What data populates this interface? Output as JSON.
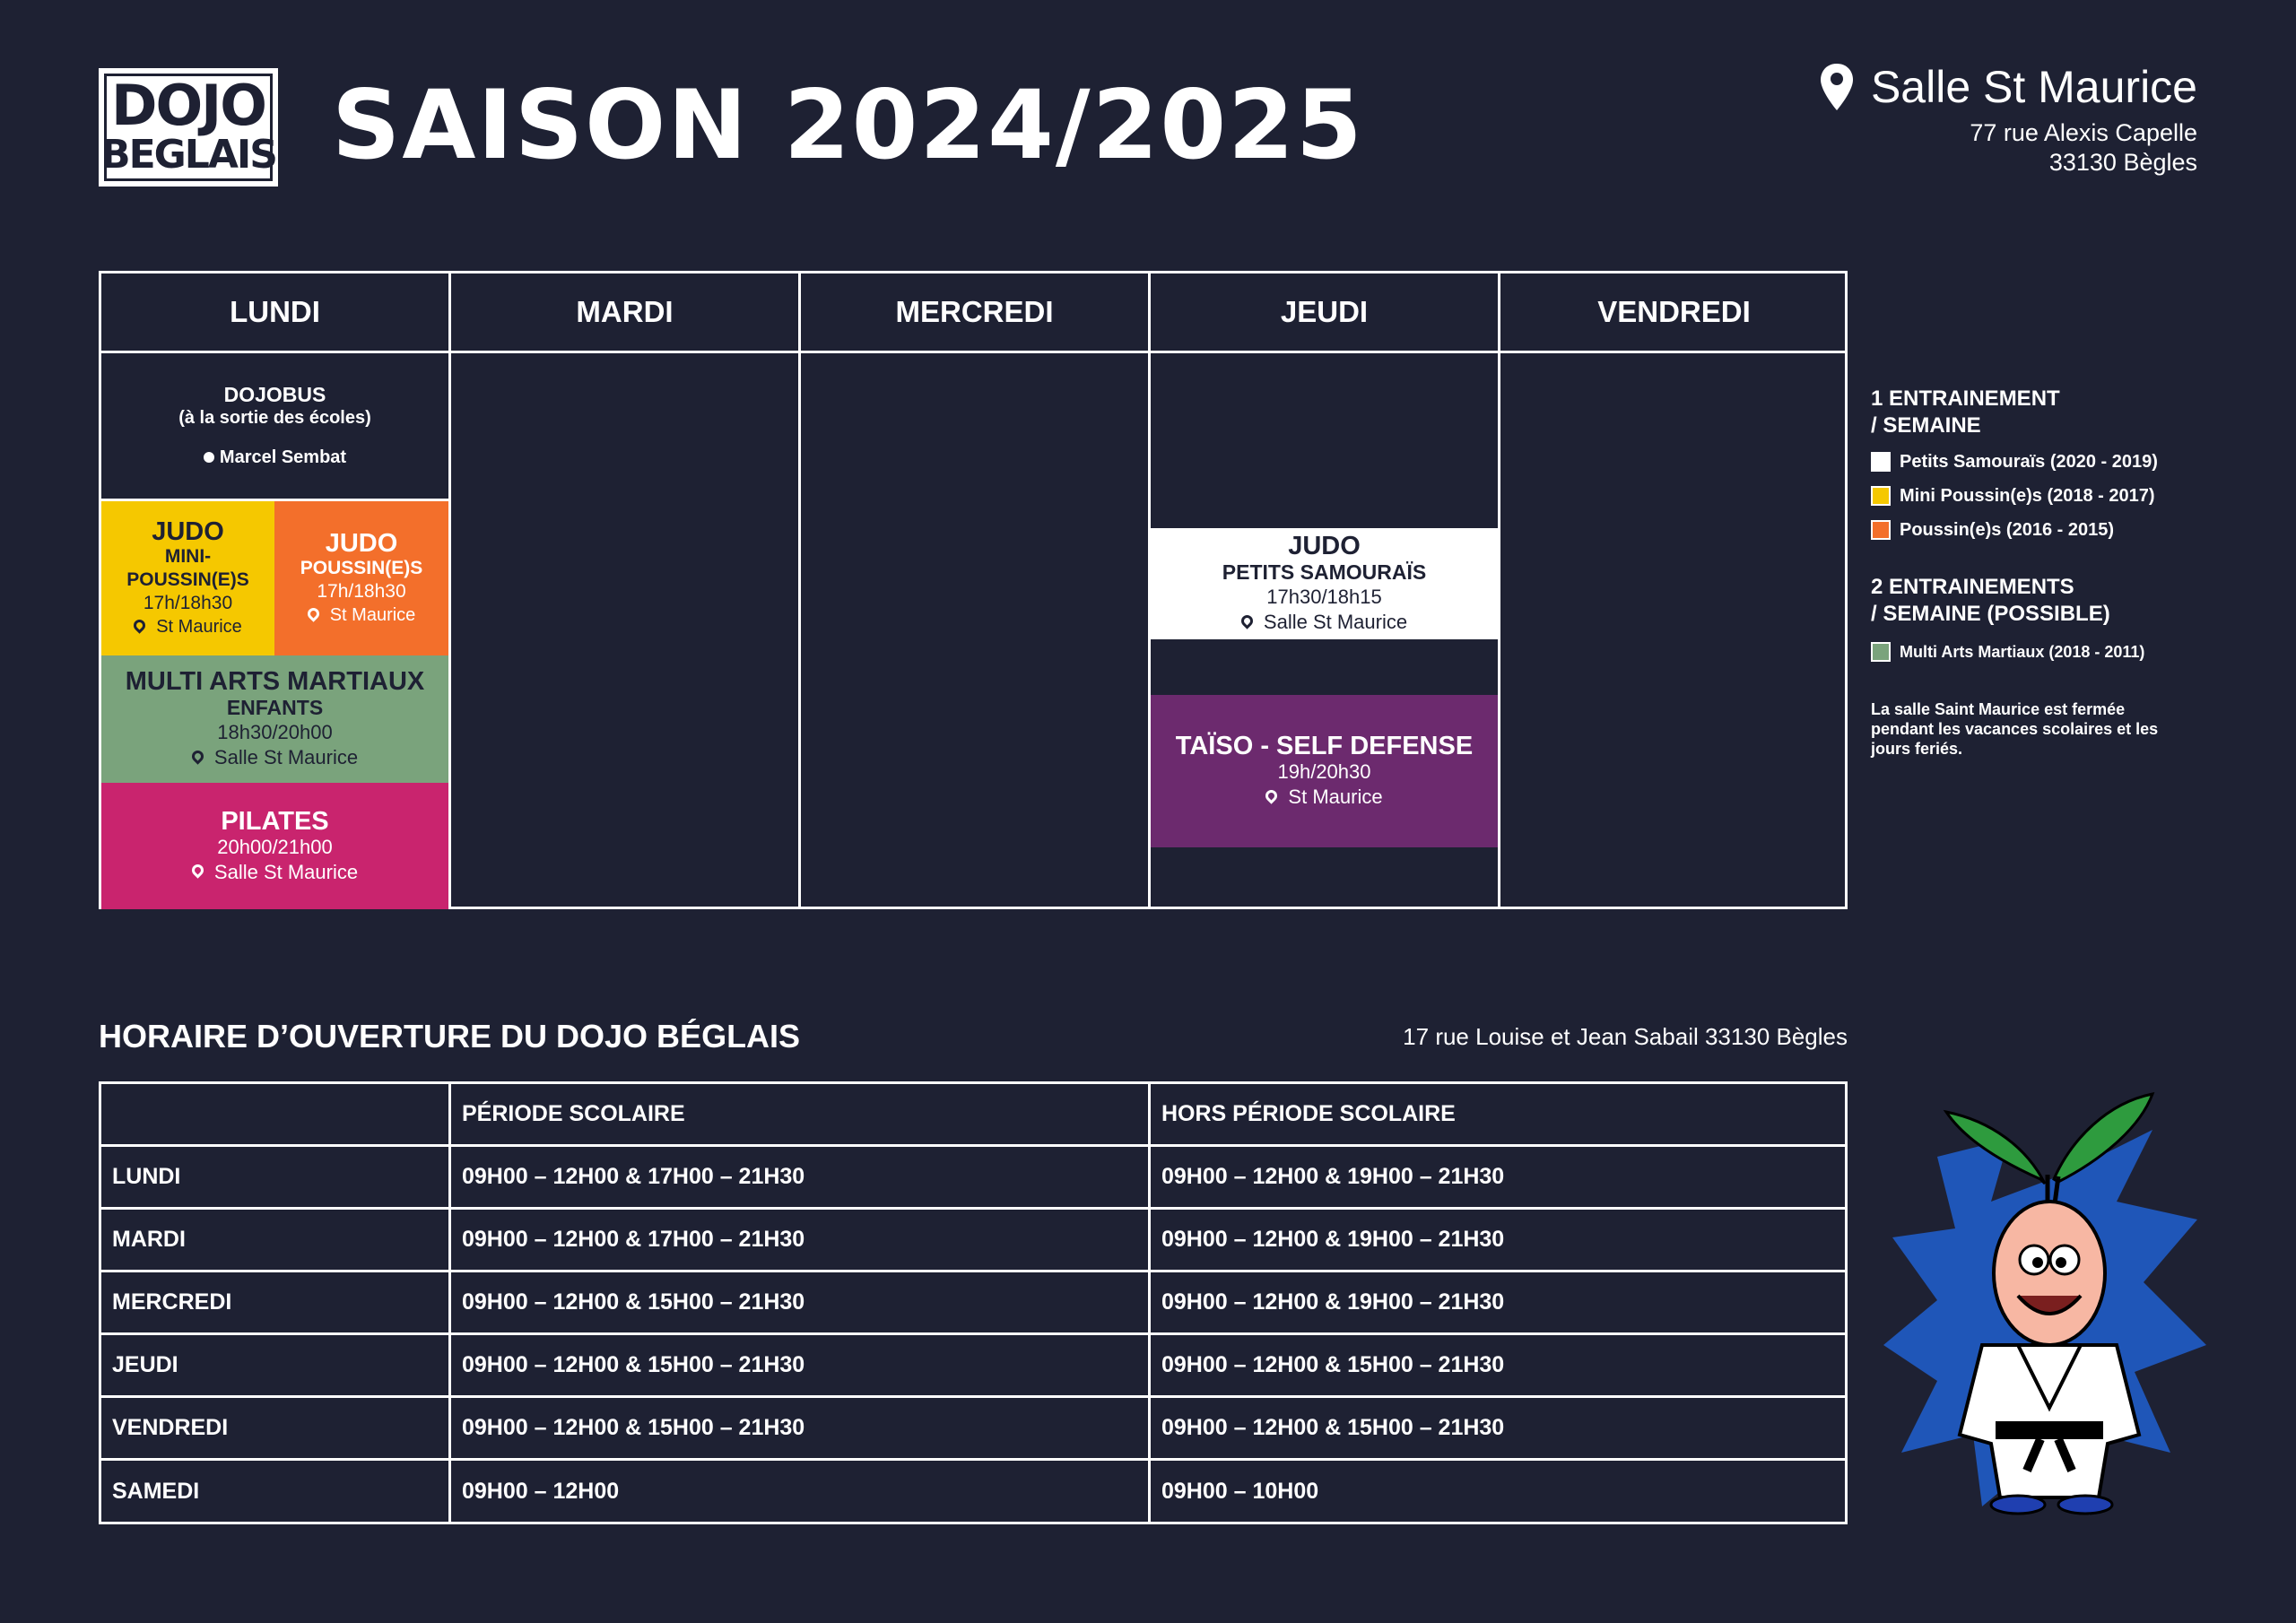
{
  "header": {
    "logo_line1": "DOJO",
    "logo_line2": "BEGLAIS",
    "title": "SAISON 2024/2025",
    "venue_name": "Salle St Maurice",
    "venue_address_1": "77 rue Alexis Capelle",
    "venue_address_2": "33130 Bègles"
  },
  "schedule": {
    "days": [
      "LUNDI",
      "MARDI",
      "MERCREDI",
      "JEUDI",
      "VENDREDI"
    ],
    "dojobus": {
      "title": "DOJOBUS",
      "subtitle": "(à la sortie des écoles)",
      "stop": "Marcel Sembat"
    },
    "judo_mini": {
      "title": "JUDO",
      "sub1": "MINI-",
      "sub2": "POUSSIN(E)S",
      "hours": "17h/18h30",
      "location": "St Maurice",
      "color": "#f5c800"
    },
    "judo_poussin": {
      "title": "JUDO",
      "sub": "POUSSIN(E)S",
      "hours": "17h/18h30",
      "location": "St Maurice",
      "color": "#f36f2b"
    },
    "multi_arts": {
      "title": "MULTI ARTS MARTIAUX",
      "sub": "ENFANTS",
      "hours": "18h30/20h00",
      "location": "Salle St Maurice",
      "color": "#7aa37c"
    },
    "pilates": {
      "title": "PILATES",
      "hours": "20h00/21h00",
      "location": "Salle St Maurice",
      "color": "#c9246e"
    },
    "judo_petits": {
      "title": "JUDO",
      "sub": "PETITS SAMOURAÏS",
      "hours": "17h30/18h15",
      "location": "Salle St Maurice",
      "color": "#ffffff"
    },
    "taiso": {
      "title": "TAÏSO - SELF DEFENSE",
      "hours": "19h/20h30",
      "location": "St Maurice",
      "color": "#6c2a6e"
    }
  },
  "legend": {
    "group1_line1": "1 ENTRAINEMENT",
    "group1_line2": "/ SEMAINE",
    "group1_items": [
      {
        "label": "Petits Samouraïs (2020 - 2019)",
        "color": "#ffffff"
      },
      {
        "label": "Mini Poussin(e)s (2018 - 2017)",
        "color": "#f5c800"
      },
      {
        "label": "Poussin(e)s (2016 - 2015)",
        "color": "#f36f2b"
      }
    ],
    "group2_line1": "2 ENTRAINEMENTS",
    "group2_line2": "/ SEMAINE (POSSIBLE)",
    "group2_items": [
      {
        "label": "Multi Arts Martiaux (2018 - 2011)",
        "color": "#7aa37c"
      }
    ],
    "note_line1": "La salle Saint Maurice est fermée",
    "note_line2": "pendant les vacances scolaires et les",
    "note_line3": "jours feriés."
  },
  "hours": {
    "title": "HORAIRE D’OUVERTURE DU DOJO BÉGLAIS",
    "address": "17 rue Louise et Jean Sabail 33130 Bègles",
    "col_school": "PÉRIODE SCOLAIRE",
    "col_holiday": "HORS PÉRIODE SCOLAIRE",
    "rows": [
      {
        "day": "LUNDI",
        "school": "09H00 – 12H00 & 17H00 – 21H30",
        "holiday": "09H00 – 12H00 & 19H00 – 21H30"
      },
      {
        "day": "MARDI",
        "school": "09H00 – 12H00 & 17H00 – 21H30",
        "holiday": "09H00 – 12H00 & 19H00 – 21H30"
      },
      {
        "day": "MERCREDI",
        "school": "09H00 – 12H00 & 15H00 – 21H30",
        "holiday": "09H00 – 12H00 & 19H00 – 21H30"
      },
      {
        "day": "JEUDI",
        "school": "09H00 – 12H00 & 15H00 – 21H30",
        "holiday": "09H00 – 12H00 & 15H00 – 21H30"
      },
      {
        "day": "VENDREDI",
        "school": "09H00 – 12H00 & 15H00 – 21H30",
        "holiday": "09H00 – 12H00 & 15H00 – 21H30"
      },
      {
        "day": "SAMEDI",
        "school": "09H00 – 12H00",
        "holiday": "09H00 – 10H00"
      }
    ]
  },
  "icons": [
    "location-pin-icon",
    "bullet-dot-icon",
    "mascot-illustration"
  ]
}
